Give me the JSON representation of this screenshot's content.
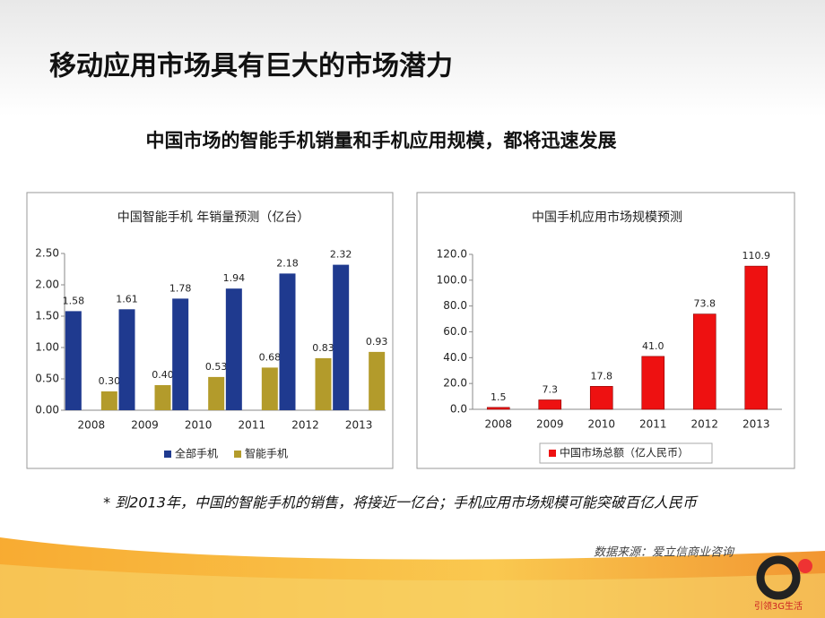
{
  "slide": {
    "title": "移动应用市场具有巨大的市场潜力",
    "subtitle": "中国市场的智能手机销量和手机应用规模，都将迅速发展",
    "footnote": "* 到2013年，中国的智能手机的销售，将接近一亿台；手机应用市场规模可能突破百亿人民币",
    "source": "数据来源：爱立信商业咨询",
    "logo_text": "引领3G生活"
  },
  "chart_data": [
    {
      "type": "bar",
      "title": "中国智能手机 年销量预测（亿台）",
      "categories": [
        "2008",
        "2009",
        "2010",
        "2011",
        "2012",
        "2013"
      ],
      "series": [
        {
          "name": "全部手机",
          "color": "#1f3a8f",
          "values": [
            1.58,
            1.61,
            1.78,
            1.94,
            2.18,
            2.32
          ]
        },
        {
          "name": "智能手机",
          "color": "#b39b2b",
          "values": [
            0.3,
            0.4,
            0.53,
            0.68,
            0.83,
            0.93
          ],
          "value_labels": [
            "0.30",
            "0.40",
            "0.53",
            "0.68",
            "0.83",
            "0.93"
          ]
        }
      ],
      "ylim": [
        0,
        2.5
      ],
      "yticks": [
        {
          "value": 0,
          "label": "0.00"
        },
        {
          "value": 0.5,
          "label": "0.50"
        },
        {
          "value": 1,
          "label": "1.00"
        },
        {
          "value": 1.5,
          "label": "1.50"
        },
        {
          "value": 2,
          "label": "2.00"
        },
        {
          "value": 2.5,
          "label": "2.50"
        }
      ],
      "grid": false,
      "legend": "bottom"
    },
    {
      "type": "bar",
      "title": "中国手机应用市场规模预测",
      "categories": [
        "2008",
        "2009",
        "2010",
        "2011",
        "2012",
        "2013"
      ],
      "series": [
        {
          "name": "中国市场总额（亿人民币）",
          "color": "#ee1111",
          "values": [
            1.5,
            7.3,
            17.8,
            41,
            73.8,
            110.9
          ],
          "value_labels": [
            "1.5",
            "7.3",
            "17.8",
            "41.0",
            "73.8",
            "110.9"
          ]
        }
      ],
      "ylim": [
        0,
        120
      ],
      "yticks": [
        {
          "value": 0,
          "label": "0.0"
        },
        {
          "value": 20,
          "label": "20.0"
        },
        {
          "value": 40,
          "label": "40.0"
        },
        {
          "value": 60,
          "label": "60.0"
        },
        {
          "value": 80,
          "label": "80.0"
        },
        {
          "value": 100,
          "label": "100.0"
        },
        {
          "value": 120,
          "label": "120.0"
        }
      ],
      "grid": false,
      "legend": "bottom"
    }
  ]
}
